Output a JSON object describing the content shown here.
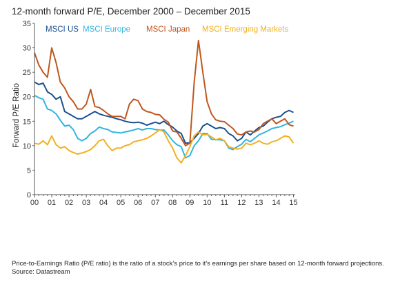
{
  "title": "12-month forward P/E, December 2000 – December 2015",
  "footnote": {
    "line1": "Price-to-Earnings Ratio (P/E ratio) is the ratio of a stock’s price to it’s earnings per share based on 12-month forward projections.",
    "line2": "Source: Datastream"
  },
  "chart_data": {
    "type": "line",
    "ylabel": "Forward P/E Ratio",
    "xlabel": "",
    "xlim": [
      2000,
      2015.1
    ],
    "ylim": [
      0,
      35
    ],
    "yticks": [
      0,
      5,
      10,
      15,
      20,
      25,
      30,
      35
    ],
    "xticks": [
      2000,
      2001,
      2002,
      2003,
      2004,
      2005,
      2006,
      2007,
      2008,
      2009,
      2010,
      2011,
      2012,
      2013,
      2014,
      2015
    ],
    "xticklabels": [
      "00",
      "01",
      "02",
      "03",
      "04",
      "05",
      "06",
      "07",
      "08",
      "09",
      "10",
      "11",
      "12",
      "13",
      "14",
      "15"
    ],
    "legend_position": "top",
    "grid": false,
    "series": [
      {
        "name": "MSCI US",
        "color": "#1a4f8f",
        "x": [
          2000.0,
          2000.25,
          2000.5,
          2000.75,
          2001.0,
          2001.25,
          2001.5,
          2001.75,
          2002.0,
          2002.25,
          2002.5,
          2002.75,
          2003.0,
          2003.25,
          2003.5,
          2003.75,
          2004.0,
          2004.25,
          2004.5,
          2004.75,
          2005.0,
          2005.25,
          2005.5,
          2005.75,
          2006.0,
          2006.25,
          2006.5,
          2006.75,
          2007.0,
          2007.25,
          2007.5,
          2007.75,
          2008.0,
          2008.25,
          2008.5,
          2008.75,
          2009.0,
          2009.25,
          2009.5,
          2009.75,
          2010.0,
          2010.25,
          2010.5,
          2010.75,
          2011.0,
          2011.25,
          2011.5,
          2011.75,
          2012.0,
          2012.25,
          2012.5,
          2012.75,
          2013.0,
          2013.25,
          2013.5,
          2013.75,
          2014.0,
          2014.25,
          2014.5,
          2014.75,
          2015.0
        ],
        "values": [
          23,
          22.5,
          22.8,
          21,
          20.5,
          19.5,
          20,
          17,
          16.5,
          16,
          15.5,
          15.5,
          16,
          16.5,
          17,
          16.5,
          16.2,
          16,
          15.8,
          15.5,
          15.3,
          15,
          14.8,
          14.7,
          14.8,
          14.6,
          14.2,
          14.5,
          14.8,
          14.5,
          15,
          14.3,
          13.8,
          13,
          12.5,
          10.5,
          10.6,
          11.5,
          12.5,
          14,
          14.5,
          14,
          13.5,
          13.7,
          13.5,
          12.5,
          12,
          11,
          11.5,
          12.8,
          12.2,
          13,
          13.7,
          14,
          14.8,
          15.5,
          15.8,
          16,
          16.8,
          17.2,
          16.8
        ]
      },
      {
        "name": "MSCI Europe",
        "color": "#33b4e0",
        "x": [
          2000.0,
          2000.25,
          2000.5,
          2000.75,
          2001.0,
          2001.25,
          2001.5,
          2001.75,
          2002.0,
          2002.25,
          2002.5,
          2002.75,
          2003.0,
          2003.25,
          2003.5,
          2003.75,
          2004.0,
          2004.25,
          2004.5,
          2004.75,
          2005.0,
          2005.25,
          2005.5,
          2005.75,
          2006.0,
          2006.25,
          2006.5,
          2006.75,
          2007.0,
          2007.25,
          2007.5,
          2007.75,
          2008.0,
          2008.25,
          2008.5,
          2008.75,
          2009.0,
          2009.25,
          2009.5,
          2009.75,
          2010.0,
          2010.25,
          2010.5,
          2010.75,
          2011.0,
          2011.25,
          2011.5,
          2011.75,
          2012.0,
          2012.25,
          2012.5,
          2012.75,
          2013.0,
          2013.25,
          2013.5,
          2013.75,
          2014.0,
          2014.25,
          2014.5,
          2014.75,
          2015.0
        ],
        "values": [
          20.3,
          19.8,
          19.5,
          17.5,
          17.2,
          16.5,
          15.2,
          14,
          14.2,
          13.3,
          11.5,
          11,
          11.5,
          12.5,
          13,
          13.8,
          13.5,
          13.3,
          12.8,
          12.7,
          12.6,
          12.8,
          13,
          13.2,
          13.5,
          13.2,
          13.5,
          13.5,
          13.3,
          13.2,
          13.2,
          12.2,
          11,
          10.2,
          9.8,
          7.5,
          8,
          10,
          11,
          12.5,
          12.5,
          11.3,
          11.2,
          11.2,
          11,
          9.5,
          9.2,
          9.8,
          10.3,
          11.3,
          10.8,
          11.5,
          12.2,
          12.6,
          13,
          13.5,
          13.7,
          13.9,
          14.3,
          14.6,
          15
        ]
      },
      {
        "name": "MSCI Japan",
        "color": "#c0561d",
        "x": [
          2000.0,
          2000.25,
          2000.5,
          2000.75,
          2001.0,
          2001.25,
          2001.5,
          2001.75,
          2002.0,
          2002.25,
          2002.5,
          2002.75,
          2003.0,
          2003.25,
          2003.5,
          2003.75,
          2004.0,
          2004.25,
          2004.5,
          2004.75,
          2005.0,
          2005.25,
          2005.5,
          2005.75,
          2006.0,
          2006.25,
          2006.5,
          2006.75,
          2007.0,
          2007.25,
          2007.5,
          2007.75,
          2008.0,
          2008.25,
          2008.5,
          2008.75,
          2009.0,
          2009.25,
          2009.5,
          2009.75,
          2010.0,
          2010.25,
          2010.5,
          2010.75,
          2011.0,
          2011.25,
          2011.5,
          2011.75,
          2012.0,
          2012.25,
          2012.5,
          2012.75,
          2013.0,
          2013.25,
          2013.5,
          2013.75,
          2014.0,
          2014.25,
          2014.5,
          2014.75,
          2015.0
        ],
        "values": [
          29,
          26.5,
          25,
          24,
          30,
          27,
          23,
          21.8,
          20,
          19,
          17.5,
          17.5,
          18.5,
          21.5,
          18,
          17.8,
          17.2,
          16.5,
          16,
          16,
          16,
          15.5,
          18.5,
          19.5,
          19.2,
          17.5,
          17,
          16.8,
          16.4,
          16.3,
          15.4,
          14.8,
          13,
          12.8,
          11.5,
          10,
          10.5,
          23,
          31.5,
          25,
          19,
          16.5,
          15.3,
          15,
          14.9,
          14.2,
          13.5,
          12.4,
          12.2,
          12.8,
          13,
          12.8,
          13.3,
          14.5,
          15,
          15.5,
          14.5,
          15,
          15.5,
          14.3,
          14
        ]
      },
      {
        "name": "MSCI Emerging Markets",
        "color": "#f2b01e",
        "x": [
          2000.0,
          2000.25,
          2000.5,
          2000.75,
          2001.0,
          2001.25,
          2001.5,
          2001.75,
          2002.0,
          2002.25,
          2002.5,
          2002.75,
          2003.0,
          2003.25,
          2003.5,
          2003.75,
          2004.0,
          2004.25,
          2004.5,
          2004.75,
          2005.0,
          2005.25,
          2005.5,
          2005.75,
          2006.0,
          2006.25,
          2006.5,
          2006.75,
          2007.0,
          2007.25,
          2007.5,
          2007.75,
          2008.0,
          2008.25,
          2008.5,
          2008.75,
          2009.0,
          2009.25,
          2009.5,
          2009.75,
          2010.0,
          2010.25,
          2010.5,
          2010.75,
          2011.0,
          2011.25,
          2011.5,
          2011.75,
          2012.0,
          2012.25,
          2012.5,
          2012.75,
          2013.0,
          2013.25,
          2013.5,
          2013.75,
          2014.0,
          2014.25,
          2014.5,
          2014.75,
          2015.0
        ],
        "values": [
          10.5,
          10.3,
          11,
          10.2,
          12,
          10.2,
          9.5,
          9.8,
          9,
          8.6,
          8.3,
          8.5,
          8.8,
          9.2,
          10,
          11,
          11.3,
          10,
          9,
          9.5,
          9.5,
          10,
          10.2,
          10.8,
          11,
          11.2,
          11.5,
          12,
          12.6,
          13.3,
          12.8,
          11,
          9.5,
          7.5,
          6.5,
          8,
          9.8,
          12,
          12.8,
          12.2,
          12.3,
          11.8,
          11.2,
          11.5,
          11,
          9.8,
          9.5,
          9.3,
          9.5,
          10.5,
          10.2,
          10.5,
          11,
          10.5,
          10.3,
          10.8,
          11,
          11.5,
          12,
          11.8,
          10.5
        ]
      }
    ]
  }
}
